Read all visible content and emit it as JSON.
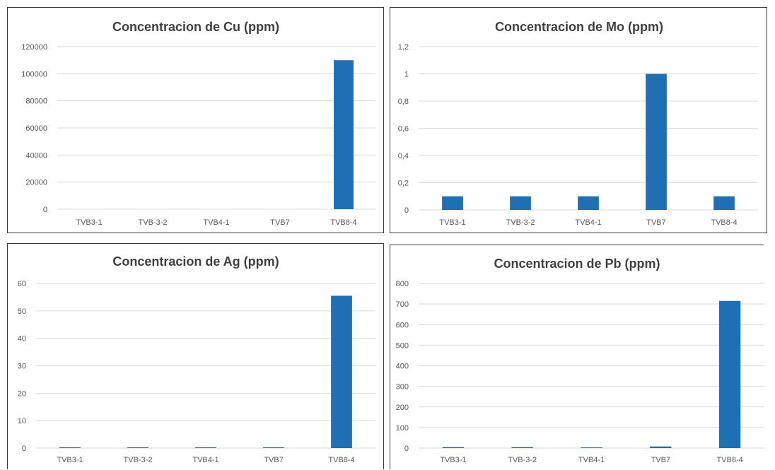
{
  "colors": {
    "bar": "#1f6fb5",
    "grid": "#d9d9d9",
    "text": "#595959",
    "title": "#404040"
  },
  "chart_data": [
    {
      "type": "bar",
      "title": "Concentracion de Cu (ppm)",
      "categories": [
        "TVB3-1",
        "TVB-3-2",
        "TVB4-1",
        "TVB7",
        "TVB8-4"
      ],
      "values": [
        0,
        0,
        0,
        0,
        110000
      ],
      "ylim": [
        0,
        120000
      ],
      "yticks": [
        "0",
        "20000",
        "40000",
        "60000",
        "80000",
        "100000",
        "120000"
      ],
      "grid": true,
      "legend": "none"
    },
    {
      "type": "bar",
      "title": "Concentracion de Mo (ppm)",
      "categories": [
        "TVB3-1",
        "TVB-3-2",
        "TVB4-1",
        "TVB7",
        "TVB8-4"
      ],
      "values": [
        0.1,
        0.1,
        0.1,
        1,
        0.1
      ],
      "ylim": [
        0,
        1.2
      ],
      "yticks": [
        "0",
        "0,2",
        "0,4",
        "0,6",
        "0,8",
        "1",
        "1,2"
      ],
      "grid": true,
      "legend": "none"
    },
    {
      "type": "bar",
      "title": "Concentracion de Ag (ppm)",
      "categories": [
        "TVB3-1",
        "TVB-3-2",
        "TVB4-1",
        "TVB7",
        "TVB8-4"
      ],
      "values": [
        0.3,
        0.3,
        0.3,
        0.3,
        55.5
      ],
      "ylim": [
        0,
        60
      ],
      "yticks": [
        "0",
        "10",
        "20",
        "30",
        "40",
        "50",
        "60"
      ],
      "grid": true,
      "legend": "none"
    },
    {
      "type": "bar",
      "title": "Concentracion de Pb (ppm)",
      "categories": [
        "TVB3-1",
        "TVB-3-2",
        "TVB4-1",
        "TVB7",
        "TVB8-4"
      ],
      "values": [
        5,
        5,
        2,
        8,
        715
      ],
      "ylim": [
        0,
        800
      ],
      "yticks": [
        "0",
        "100",
        "200",
        "300",
        "400",
        "500",
        "600",
        "700",
        "800"
      ],
      "grid": true,
      "legend": "none"
    }
  ]
}
